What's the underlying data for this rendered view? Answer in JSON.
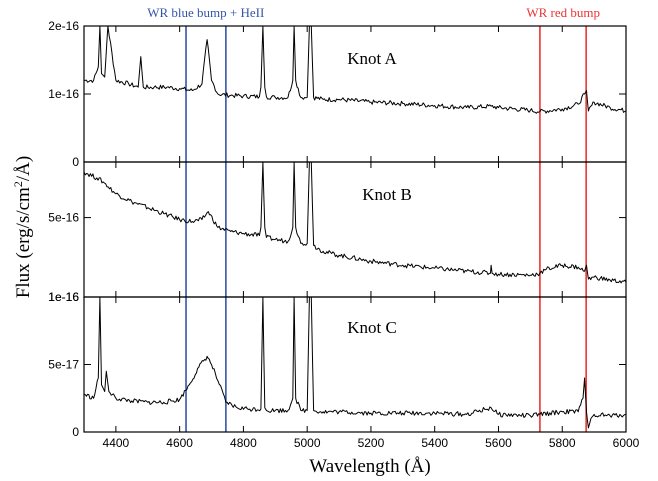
{
  "chart_data": {
    "type": "line",
    "xlabel": "Wavelength (Å)",
    "ylabel": {
      "prefix": "Flux (erg/s/cm",
      "sup": "2",
      "suffix": "/Å)"
    },
    "xlim": [
      4300,
      6000
    ],
    "xticks": [
      4400,
      4600,
      4800,
      5000,
      5200,
      5400,
      5600,
      5800,
      6000
    ],
    "xtick_labels": [
      "4400",
      "4600",
      "4800",
      "5000",
      "5200",
      "5400",
      "5600",
      "5800",
      "6000"
    ],
    "annotations": [
      {
        "text": "WR blue bump + HeII",
        "color": "#3355aa",
        "x_lines": [
          4620,
          4745
        ],
        "label_x": 4682
      },
      {
        "text": "WR red bump",
        "color": "#ee3333",
        "x_lines": [
          5730,
          5875
        ],
        "label_x": 5803
      }
    ],
    "panels": [
      {
        "label": "Knot A",
        "ylim": [
          0,
          2e-16
        ],
        "yticks": [
          0,
          1e-16,
          2e-16
        ],
        "ytick_labels": [
          "0",
          "1e-16",
          "2e-16"
        ],
        "x": [
          4300,
          4330,
          4345,
          4350,
          4355,
          4365,
          4375,
          4400,
          4440,
          4470,
          4478,
          4486,
          4520,
          4560,
          4600,
          4640,
          4670,
          4686,
          4700,
          4720,
          4760,
          4800,
          4850,
          4855,
          4861,
          4867,
          4872,
          4900,
          4940,
          4955,
          4959,
          4964,
          4980,
          5000,
          5007,
          5013,
          5020,
          5050,
          5100,
          5200,
          5300,
          5400,
          5500,
          5577,
          5600,
          5700,
          5730,
          5800,
          5850,
          5870,
          5876,
          5882,
          5900,
          5950,
          6000
        ],
        "y": [
          1.2e-16,
          1.2e-16,
          1.4e-16,
          2e-16,
          1.3e-16,
          1.25e-16,
          2e-16,
          1.2e-16,
          1.15e-16,
          1.1e-16,
          1.55e-16,
          1.1e-16,
          1.1e-16,
          1.1e-16,
          1.08e-16,
          1.05e-16,
          1.15e-16,
          1.8e-16,
          1.2e-16,
          1e-16,
          9.8e-17,
          9.7e-17,
          9.6e-17,
          1.1e-16,
          2e-16,
          1.1e-16,
          9.6e-17,
          9.5e-17,
          9.5e-17,
          1.2e-16,
          2e-16,
          1.2e-16,
          9.5e-17,
          9.5e-17,
          2e-16,
          2e-16,
          9.5e-17,
          9.2e-17,
          9.2e-17,
          8.8e-17,
          8.6e-17,
          8.3e-17,
          8e-17,
          8.2e-17,
          8e-17,
          7.6e-17,
          7.4e-17,
          7.8e-17,
          8.5e-17,
          1e-16,
          1.05e-16,
          7.5e-17,
          8.8e-17,
          8e-17,
          7.5e-17
        ]
      },
      {
        "label": "Knot B",
        "ylim": [
          1e-16,
          7.8e-16
        ],
        "yticks": [
          1e-16,
          5e-16
        ],
        "ytick_labels": [
          "1e-16",
          "5e-16"
        ],
        "x": [
          4300,
          4340,
          4360,
          4400,
          4450,
          4500,
          4550,
          4600,
          4640,
          4670,
          4690,
          4720,
          4760,
          4800,
          4850,
          4855,
          4861,
          4867,
          4872,
          4900,
          4940,
          4955,
          4959,
          4964,
          4980,
          5000,
          5007,
          5013,
          5020,
          5050,
          5100,
          5200,
          5300,
          5400,
          5500,
          5575,
          5577,
          5580,
          5600,
          5700,
          5730,
          5750,
          5800,
          5850,
          5870,
          5876,
          5882,
          5900,
          5950,
          6000
        ],
        "y": [
          7.3e-16,
          7e-16,
          6.8e-16,
          6.2e-16,
          5.8e-16,
          5.5e-16,
          5.2e-16,
          4.9e-16,
          4.8e-16,
          4.9e-16,
          5.3e-16,
          4.5e-16,
          4.3e-16,
          4.2e-16,
          4.1e-16,
          4.5e-16,
          7.8e-16,
          4.5e-16,
          4e-16,
          3.9e-16,
          3.8e-16,
          4.5e-16,
          7.8e-16,
          4.5e-16,
          3.7e-16,
          3.7e-16,
          7.8e-16,
          7.8e-16,
          3.6e-16,
          3.3e-16,
          3.1e-16,
          2.8e-16,
          2.6e-16,
          2.45e-16,
          2.3e-16,
          2.2e-16,
          2.6e-16,
          2.2e-16,
          2.15e-16,
          2.1e-16,
          2.2e-16,
          2.4e-16,
          2.6e-16,
          2.5e-16,
          2.3e-16,
          2.6e-16,
          1.9e-16,
          2e-16,
          1.85e-16,
          1.75e-16
        ]
      },
      {
        "label": "Knot C",
        "ylim": [
          0,
          1e-16
        ],
        "yticks": [
          0,
          5e-17,
          1e-16
        ],
        "ytick_labels": [
          "0",
          "5e-17",
          "1e-16"
        ],
        "x": [
          4300,
          4330,
          4345,
          4350,
          4355,
          4365,
          4370,
          4378,
          4400,
          4450,
          4500,
          4550,
          4600,
          4630,
          4660,
          4686,
          4700,
          4720,
          4745,
          4780,
          4820,
          4855,
          4861,
          4867,
          4872,
          4900,
          4940,
          4955,
          4959,
          4964,
          4980,
          5000,
          5007,
          5013,
          5020,
          5050,
          5100,
          5200,
          5300,
          5400,
          5500,
          5577,
          5600,
          5700,
          5730,
          5800,
          5850,
          5865,
          5870,
          5876,
          5882,
          5890,
          5900,
          5950,
          6000
        ],
        "y": [
          2.8e-17,
          2.5e-17,
          4e-17,
          1e-16,
          3.5e-17,
          3e-17,
          4.5e-17,
          3e-17,
          2.5e-17,
          2.3e-17,
          2.2e-17,
          2.2e-17,
          2.4e-17,
          3.5e-17,
          4.8e-17,
          5.6e-17,
          5e-17,
          3.8e-17,
          2.2e-17,
          1.8e-17,
          1.7e-17,
          1.7e-17,
          1e-16,
          1.8e-17,
          1.6e-17,
          1.6e-17,
          1.6e-17,
          2.5e-17,
          1e-16,
          2.5e-17,
          1.6e-17,
          1.6e-17,
          1e-16,
          1e-16,
          1.6e-17,
          1.5e-17,
          1.5e-17,
          1.4e-17,
          1.4e-17,
          1.4e-17,
          1.3e-17,
          1.8e-17,
          1.3e-17,
          1.2e-17,
          1.3e-17,
          1.5e-17,
          1.5e-17,
          2.5e-17,
          4e-17,
          1.5e-17,
          3e-18,
          1e-17,
          1.3e-17,
          1.2e-17,
          1.3e-17
        ]
      }
    ]
  }
}
